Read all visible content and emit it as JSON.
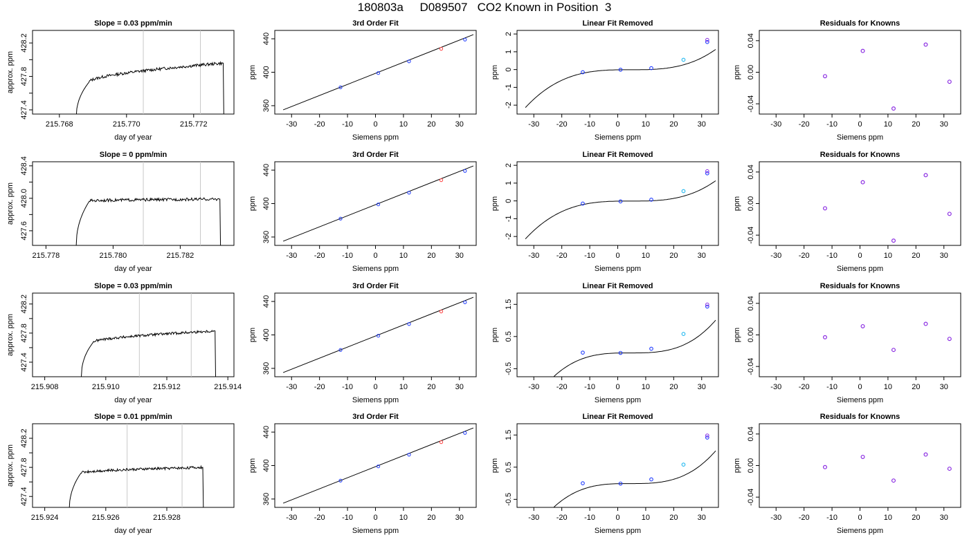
{
  "page_title": "180803a     D089507   CO2 Known in Position  3",
  "colors": {
    "background": "#ffffff",
    "axis": "#000000",
    "trace": "#000000",
    "fit_curve": "#000000",
    "vline": "#c8c8c8",
    "point_blue": "#1f3bff",
    "point_purple": "#8a2be2",
    "point_red": "#ff4040",
    "point_cyan": "#20b8f0"
  },
  "chart_data": [
    {
      "type": "line",
      "row": 1,
      "kind": "timeseries",
      "title": "Slope =  0.03  ppm/min",
      "xlabel": "day of year",
      "ylabel": "approx. ppm",
      "xlim": [
        215.7672,
        215.7732
      ],
      "ylim": [
        427.35,
        428.35
      ],
      "xticks": [
        "215.768",
        "215.770",
        "215.772"
      ],
      "xtick_values": [
        215.768,
        215.77,
        215.772
      ],
      "yticks": [
        "427.4",
        "427.8",
        "428.2"
      ],
      "ytick_values": [
        427.4,
        427.8,
        428.2
      ],
      "vlines": [
        215.7705,
        215.7722
      ],
      "trace": {
        "t_start": 215.7685,
        "t_end": 215.7729,
        "rise_end": 215.7689,
        "plateau_start": 427.74,
        "plateau_end": 427.96,
        "rise_from": 427.3,
        "drop_to": 427.3
      }
    },
    {
      "type": "scatter",
      "row": 1,
      "kind": "fit",
      "title": "3rd Order Fit",
      "xlabel": "Siemens ppm",
      "ylabel": "ppm",
      "xlim": [
        -36,
        36
      ],
      "ylim": [
        350,
        450
      ],
      "xticks": [
        "-30",
        "-20",
        "-10",
        "0",
        "10",
        "20",
        "30"
      ],
      "xtick_values": [
        -30,
        -20,
        -10,
        0,
        10,
        20,
        30
      ],
      "yticks": [
        "360",
        "400",
        "440"
      ],
      "ytick_values": [
        360,
        400,
        440
      ],
      "line": {
        "x": [
          -33,
          35
        ],
        "y": [
          355,
          445
        ]
      },
      "points": {
        "x": [
          -12.5,
          1.0,
          12.0,
          23.5,
          32.0
        ],
        "y": [
          382,
          399,
          413,
          428,
          439
        ]
      }
    },
    {
      "type": "scatter",
      "row": 1,
      "kind": "linfit",
      "title": "Linear Fit Removed",
      "xlabel": "Siemens ppm",
      "ylabel": "ppm",
      "xlim": [
        -36,
        36
      ],
      "ylim": [
        -2.5,
        2.2
      ],
      "xticks": [
        "-30",
        "-20",
        "-10",
        "0",
        "10",
        "20",
        "30"
      ],
      "xtick_values": [
        -30,
        -20,
        -10,
        0,
        10,
        20,
        30
      ],
      "yticks": [
        "-2",
        "-1",
        "0",
        "1",
        "2"
      ],
      "ytick_values": [
        -2,
        -1,
        0,
        1,
        2
      ],
      "curve": {
        "x_from": -33,
        "x_to": 35,
        "center": 4.5,
        "a": 4.03e-05,
        "c": -0.01
      },
      "points": {
        "x": [
          -12.5,
          1.0,
          12.0,
          23.5,
          32.0
        ],
        "y": [
          -0.15,
          -0.01,
          0.08,
          0.55,
          1.55
        ]
      }
    },
    {
      "type": "scatter",
      "row": 1,
      "kind": "resid",
      "title": "Residuals for Knowns",
      "xlabel": "Siemens ppm",
      "ylabel": "ppm",
      "xlim": [
        -36,
        36
      ],
      "ylim": [
        -0.053,
        0.053
      ],
      "xticks": [
        "-30",
        "-20",
        "-10",
        "0",
        "10",
        "20",
        "30"
      ],
      "xtick_values": [
        -30,
        -20,
        -10,
        0,
        10,
        20,
        30
      ],
      "yticks": [
        "-0.04",
        "0.00",
        "0.04"
      ],
      "ytick_values": [
        -0.04,
        0.0,
        0.04
      ],
      "points": {
        "x": [
          -12.5,
          1.0,
          12.0,
          23.5,
          32.0
        ],
        "y": [
          -0.005,
          0.027,
          -0.046,
          0.035,
          -0.012
        ]
      }
    },
    {
      "type": "line",
      "row": 2,
      "kind": "timeseries",
      "title": "Slope =  0  ppm/min",
      "xlabel": "day of year",
      "ylabel": "approx. ppm",
      "xlim": [
        215.7776,
        215.7836
      ],
      "ylim": [
        427.42,
        428.45
      ],
      "xticks": [
        "215.778",
        "215.780",
        "215.782"
      ],
      "xtick_values": [
        215.778,
        215.78,
        215.782
      ],
      "yticks": [
        "427.6",
        "428.0",
        "428.4"
      ],
      "ytick_values": [
        427.6,
        428.0,
        428.4
      ],
      "vlines": [
        215.7809,
        215.7826
      ],
      "trace": {
        "t_start": 215.7789,
        "t_end": 215.7832,
        "rise_end": 215.7793,
        "plateau_start": 427.97,
        "plateau_end": 427.99,
        "rise_from": 427.4,
        "drop_to": 427.4
      }
    },
    {
      "type": "scatter",
      "row": 2,
      "kind": "fit",
      "title": "3rd Order Fit",
      "xlabel": "Siemens ppm",
      "ylabel": "ppm",
      "xlim": [
        -36,
        36
      ],
      "ylim": [
        350,
        450
      ],
      "xticks": [
        "-30",
        "-20",
        "-10",
        "0",
        "10",
        "20",
        "30"
      ],
      "xtick_values": [
        -30,
        -20,
        -10,
        0,
        10,
        20,
        30
      ],
      "yticks": [
        "360",
        "400",
        "440"
      ],
      "ytick_values": [
        360,
        400,
        440
      ],
      "line": {
        "x": [
          -33,
          35
        ],
        "y": [
          355,
          445
        ]
      },
      "points": {
        "x": [
          -12.5,
          1.0,
          12.0,
          23.5,
          32.0
        ],
        "y": [
          382,
          399,
          413,
          428,
          439
        ]
      }
    },
    {
      "type": "scatter",
      "row": 2,
      "kind": "linfit",
      "title": "Linear Fit Removed",
      "xlabel": "Siemens ppm",
      "ylabel": "ppm",
      "xlim": [
        -36,
        36
      ],
      "ylim": [
        -2.5,
        2.2
      ],
      "xticks": [
        "-30",
        "-20",
        "-10",
        "0",
        "10",
        "20",
        "30"
      ],
      "xtick_values": [
        -30,
        -20,
        -10,
        0,
        10,
        20,
        30
      ],
      "yticks": [
        "-2",
        "-1",
        "0",
        "1",
        "2"
      ],
      "ytick_values": [
        -2,
        -1,
        0,
        1,
        2
      ],
      "curve": {
        "x_from": -33,
        "x_to": 35,
        "center": 4.5,
        "a": 4.03e-05,
        "c": -0.01
      },
      "points": {
        "x": [
          -12.5,
          1.0,
          12.0,
          23.5,
          32.0
        ],
        "y": [
          -0.15,
          -0.03,
          0.07,
          0.55,
          1.55
        ]
      }
    },
    {
      "type": "scatter",
      "row": 2,
      "kind": "resid",
      "title": "Residuals for Knowns",
      "xlabel": "Siemens ppm",
      "ylabel": "ppm",
      "xlim": [
        -36,
        36
      ],
      "ylim": [
        -0.053,
        0.053
      ],
      "xticks": [
        "-30",
        "-20",
        "-10",
        "0",
        "10",
        "20",
        "30"
      ],
      "xtick_values": [
        -30,
        -20,
        -10,
        0,
        10,
        20,
        30
      ],
      "yticks": [
        "-0.04",
        "0.00",
        "0.04"
      ],
      "ytick_values": [
        -0.04,
        0.0,
        0.04
      ],
      "points": {
        "x": [
          -12.5,
          1.0,
          12.0,
          23.5,
          32.0
        ],
        "y": [
          -0.006,
          0.027,
          -0.047,
          0.036,
          -0.013
        ]
      }
    },
    {
      "type": "line",
      "row": 3,
      "kind": "timeseries",
      "title": "Slope =  0.03  ppm/min",
      "xlabel": "day of year",
      "ylabel": "approx. ppm",
      "xlim": [
        215.9076,
        215.9142
      ],
      "ylim": [
        427.2,
        428.35
      ],
      "xticks": [
        "215.908",
        "215.910",
        "215.912",
        "215.914"
      ],
      "xtick_values": [
        215.908,
        215.91,
        215.912,
        215.914
      ],
      "yticks": [
        "427.4",
        "427.8",
        "428.2"
      ],
      "ytick_values": [
        427.4,
        427.8,
        428.2
      ],
      "vlines": [
        215.9111,
        215.9128
      ],
      "trace": {
        "t_start": 215.9092,
        "t_end": 215.9136,
        "rise_end": 215.9096,
        "plateau_start": 427.68,
        "plateau_end": 427.83,
        "rise_from": 427.2,
        "drop_to": 427.2
      }
    },
    {
      "type": "scatter",
      "row": 3,
      "kind": "fit",
      "title": "3rd Order Fit",
      "xlabel": "Siemens ppm",
      "ylabel": "ppm",
      "xlim": [
        -36,
        36
      ],
      "ylim": [
        350,
        450
      ],
      "xticks": [
        "-30",
        "-20",
        "-10",
        "0",
        "10",
        "20",
        "30"
      ],
      "xtick_values": [
        -30,
        -20,
        -10,
        0,
        10,
        20,
        30
      ],
      "yticks": [
        "360",
        "400",
        "440"
      ],
      "ytick_values": [
        360,
        400,
        440
      ],
      "line": {
        "x": [
          -33,
          35
        ],
        "y": [
          355,
          445
        ]
      },
      "points": {
        "x": [
          -12.5,
          1.0,
          12.0,
          23.5,
          32.0
        ],
        "y": [
          382,
          399,
          413,
          428,
          439
        ]
      }
    },
    {
      "type": "scatter",
      "row": 3,
      "kind": "linfit",
      "title": "Linear Fit Removed",
      "xlabel": "Siemens ppm",
      "ylabel": "ppm",
      "xlim": [
        -36,
        36
      ],
      "ylim": [
        -0.75,
        1.85
      ],
      "xticks": [
        "-30",
        "-20",
        "-10",
        "0",
        "10",
        "20",
        "30"
      ],
      "xtick_values": [
        -30,
        -20,
        -10,
        0,
        10,
        20,
        30
      ],
      "yticks": [
        "-0.5",
        "0.5",
        "1.5"
      ],
      "ytick_values": [
        -0.5,
        0.5,
        1.5
      ],
      "curve": {
        "x_from": -33,
        "x_to": 35,
        "center": 4.5,
        "a": 3.59e-05,
        "c": -0.01
      },
      "points": {
        "x": [
          -12.5,
          1.0,
          12.0,
          23.5,
          32.0
        ],
        "y": [
          0.0,
          -0.01,
          0.12,
          0.58,
          1.43
        ]
      }
    },
    {
      "type": "scatter",
      "row": 3,
      "kind": "resid",
      "title": "Residuals for Knowns",
      "xlabel": "Siemens ppm",
      "ylabel": "ppm",
      "xlim": [
        -36,
        36
      ],
      "ylim": [
        -0.053,
        0.053
      ],
      "xticks": [
        "-30",
        "-20",
        "-10",
        "0",
        "10",
        "20",
        "30"
      ],
      "xtick_values": [
        -30,
        -20,
        -10,
        0,
        10,
        20,
        30
      ],
      "yticks": [
        "-0.04",
        "0.00",
        "0.04"
      ],
      "ytick_values": [
        -0.04,
        0.0,
        0.04
      ],
      "points": {
        "x": [
          -12.5,
          1.0,
          12.0,
          23.5,
          32.0
        ],
        "y": [
          -0.003,
          0.011,
          -0.019,
          0.014,
          -0.005
        ]
      }
    },
    {
      "type": "line",
      "row": 4,
      "kind": "timeseries",
      "title": "Slope =  0.01  ppm/min",
      "xlabel": "day of year",
      "ylabel": "approx. ppm",
      "xlim": [
        215.9236,
        215.9302
      ],
      "ylim": [
        427.25,
        428.4
      ],
      "xticks": [
        "215.924",
        "215.926",
        "215.928"
      ],
      "xtick_values": [
        215.924,
        215.926,
        215.928
      ],
      "yticks": [
        "427.4",
        "427.8",
        "428.2"
      ],
      "ytick_values": [
        427.4,
        427.8,
        428.2
      ],
      "vlines": [
        215.9267,
        215.9285
      ],
      "trace": {
        "t_start": 215.9248,
        "t_end": 215.9292,
        "rise_end": 215.9252,
        "plateau_start": 427.73,
        "plateau_end": 427.8,
        "rise_from": 427.2,
        "drop_to": 427.2
      }
    },
    {
      "type": "scatter",
      "row": 4,
      "kind": "fit",
      "title": "3rd Order Fit",
      "xlabel": "Siemens ppm",
      "ylabel": "ppm",
      "xlim": [
        -36,
        36
      ],
      "ylim": [
        350,
        450
      ],
      "xticks": [
        "-30",
        "-20",
        "-10",
        "0",
        "10",
        "20",
        "30"
      ],
      "xtick_values": [
        -30,
        -20,
        -10,
        0,
        10,
        20,
        30
      ],
      "yticks": [
        "360",
        "400",
        "440"
      ],
      "ytick_values": [
        360,
        400,
        440
      ],
      "line": {
        "x": [
          -33,
          35
        ],
        "y": [
          355,
          445
        ]
      },
      "points": {
        "x": [
          -12.5,
          1.0,
          12.0,
          23.5,
          32.0
        ],
        "y": [
          382,
          399,
          413,
          428,
          439
        ]
      }
    },
    {
      "type": "scatter",
      "row": 4,
      "kind": "linfit",
      "title": "Linear Fit Removed",
      "xlabel": "Siemens ppm",
      "ylabel": "ppm",
      "xlim": [
        -36,
        36
      ],
      "ylim": [
        -0.75,
        1.85
      ],
      "xticks": [
        "-30",
        "-20",
        "-10",
        "0",
        "10",
        "20",
        "30"
      ],
      "xtick_values": [
        -30,
        -20,
        -10,
        0,
        10,
        20,
        30
      ],
      "yticks": [
        "-0.5",
        "0.5",
        "1.5"
      ],
      "ytick_values": [
        -0.5,
        0.5,
        1.5
      ],
      "curve": {
        "x_from": -33,
        "x_to": 35,
        "center": 4.5,
        "a": 3.59e-05,
        "c": -0.01
      },
      "points": {
        "x": [
          -12.5,
          1.0,
          12.0,
          23.5,
          32.0
        ],
        "y": [
          0.0,
          -0.01,
          0.12,
          0.58,
          1.42
        ]
      }
    },
    {
      "type": "scatter",
      "row": 4,
      "kind": "resid",
      "title": "Residuals for Knowns",
      "xlabel": "Siemens ppm",
      "ylabel": "ppm",
      "xlim": [
        -36,
        36
      ],
      "ylim": [
        -0.053,
        0.053
      ],
      "xticks": [
        "-30",
        "-20",
        "-10",
        "0",
        "10",
        "20",
        "30"
      ],
      "xtick_values": [
        -30,
        -20,
        -10,
        0,
        10,
        20,
        30
      ],
      "yticks": [
        "-0.04",
        "0.00",
        "0.04"
      ],
      "ytick_values": [
        -0.04,
        0.0,
        0.04
      ],
      "points": {
        "x": [
          -12.5,
          1.0,
          12.0,
          23.5,
          32.0
        ],
        "y": [
          -0.002,
          0.011,
          -0.019,
          0.014,
          -0.004
        ]
      }
    }
  ]
}
